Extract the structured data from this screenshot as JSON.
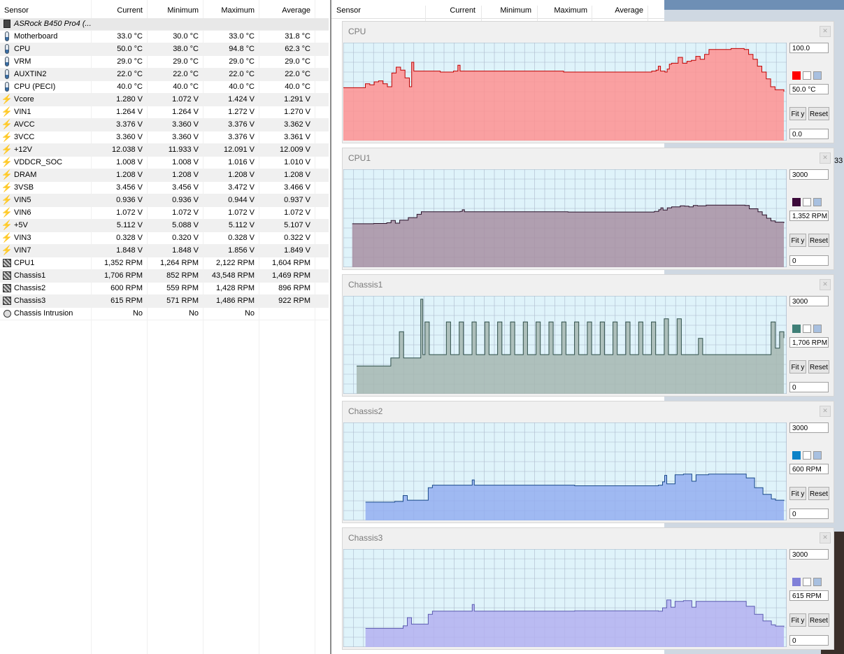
{
  "columns": {
    "sensor": "Sensor",
    "current": "Current",
    "minimum": "Minimum",
    "maximum": "Maximum",
    "average": "Average"
  },
  "rows": [
    {
      "icon": "chip-icon",
      "name": "ASRock B450 Pro4 (...",
      "cur": "",
      "min": "",
      "max": "",
      "avg": "",
      "device": true
    },
    {
      "icon": "thermometer-icon",
      "name": "Motherboard",
      "cur": "33.0 °C",
      "min": "30.0 °C",
      "max": "33.0 °C",
      "avg": "31.8 °C"
    },
    {
      "icon": "thermometer-icon",
      "name": "CPU",
      "cur": "50.0 °C",
      "min": "38.0 °C",
      "max": "94.8 °C",
      "avg": "62.3 °C"
    },
    {
      "icon": "thermometer-icon",
      "name": "VRM",
      "cur": "29.0 °C",
      "min": "29.0 °C",
      "max": "29.0 °C",
      "avg": "29.0 °C"
    },
    {
      "icon": "thermometer-icon",
      "name": "AUXTIN2",
      "cur": "22.0 °C",
      "min": "22.0 °C",
      "max": "22.0 °C",
      "avg": "22.0 °C"
    },
    {
      "icon": "thermometer-icon",
      "name": "CPU (PECI)",
      "cur": "40.0 °C",
      "min": "40.0 °C",
      "max": "40.0 °C",
      "avg": "40.0 °C"
    },
    {
      "icon": "voltage-icon",
      "name": "Vcore",
      "cur": "1.280 V",
      "min": "1.072 V",
      "max": "1.424 V",
      "avg": "1.291 V"
    },
    {
      "icon": "voltage-icon",
      "name": "VIN1",
      "cur": "1.264 V",
      "min": "1.264 V",
      "max": "1.272 V",
      "avg": "1.270 V"
    },
    {
      "icon": "voltage-icon",
      "name": "AVCC",
      "cur": "3.376 V",
      "min": "3.360 V",
      "max": "3.376 V",
      "avg": "3.362 V"
    },
    {
      "icon": "voltage-icon",
      "name": "3VCC",
      "cur": "3.360 V",
      "min": "3.360 V",
      "max": "3.376 V",
      "avg": "3.361 V"
    },
    {
      "icon": "voltage-icon",
      "name": "+12V",
      "cur": "12.038 V",
      "min": "11.933 V",
      "max": "12.091 V",
      "avg": "12.009 V"
    },
    {
      "icon": "voltage-icon",
      "name": "VDDCR_SOC",
      "cur": "1.008 V",
      "min": "1.008 V",
      "max": "1.016 V",
      "avg": "1.010 V"
    },
    {
      "icon": "voltage-icon",
      "name": "DRAM",
      "cur": "1.208 V",
      "min": "1.208 V",
      "max": "1.208 V",
      "avg": "1.208 V"
    },
    {
      "icon": "voltage-icon",
      "name": "3VSB",
      "cur": "3.456 V",
      "min": "3.456 V",
      "max": "3.472 V",
      "avg": "3.466 V"
    },
    {
      "icon": "voltage-icon",
      "name": "VIN5",
      "cur": "0.936 V",
      "min": "0.936 V",
      "max": "0.944 V",
      "avg": "0.937 V"
    },
    {
      "icon": "voltage-icon",
      "name": "VIN6",
      "cur": "1.072 V",
      "min": "1.072 V",
      "max": "1.072 V",
      "avg": "1.072 V"
    },
    {
      "icon": "voltage-icon",
      "name": "+5V",
      "cur": "5.112 V",
      "min": "5.088 V",
      "max": "5.112 V",
      "avg": "5.107 V"
    },
    {
      "icon": "voltage-icon",
      "name": "VIN3",
      "cur": "0.328 V",
      "min": "0.320 V",
      "max": "0.328 V",
      "avg": "0.322 V"
    },
    {
      "icon": "voltage-icon",
      "name": "VIN7",
      "cur": "1.848 V",
      "min": "1.848 V",
      "max": "1.856 V",
      "avg": "1.849 V"
    },
    {
      "icon": "fan-icon",
      "name": "CPU1",
      "cur": "1,352 RPM",
      "min": "1,264 RPM",
      "max": "2,122 RPM",
      "avg": "1,604 RPM"
    },
    {
      "icon": "fan-icon",
      "name": "Chassis1",
      "cur": "1,706 RPM",
      "min": "852 RPM",
      "max": "43,548 RPM",
      "avg": "1,469 RPM"
    },
    {
      "icon": "fan-icon",
      "name": "Chassis2",
      "cur": "600 RPM",
      "min": "559 RPM",
      "max": "1,428 RPM",
      "avg": "896 RPM"
    },
    {
      "icon": "fan-icon",
      "name": "Chassis3",
      "cur": "615 RPM",
      "min": "571 RPM",
      "max": "1,486 RPM",
      "avg": "922 RPM"
    },
    {
      "icon": "intrusion-icon",
      "name": "Chassis Intrusion",
      "cur": "No",
      "min": "No",
      "max": "No",
      "avg": ""
    }
  ],
  "edge_text": "33",
  "colors": {
    "grid_bg": "#dff3fa",
    "grid_line": "#aab8cc"
  },
  "graphs": [
    {
      "title": "CPU",
      "max_value": "100.0",
      "current_value": "50.0 °C",
      "min_value": "0.0",
      "fit_label": "Fit y",
      "reset_label": "Reset",
      "color": "#ff0000",
      "fill": "#ff9090",
      "stroke": "#c00000",
      "y_max": 100,
      "series": [
        [
          0,
          54
        ],
        [
          4,
          54
        ],
        [
          5,
          58
        ],
        [
          6,
          57
        ],
        [
          7,
          60
        ],
        [
          8,
          61
        ],
        [
          9,
          58
        ],
        [
          10,
          55
        ],
        [
          11,
          69
        ],
        [
          12,
          75
        ],
        [
          13,
          72
        ],
        [
          14,
          64
        ],
        [
          15,
          55
        ],
        [
          15.5,
          80
        ],
        [
          16,
          71
        ],
        [
          22,
          70
        ],
        [
          25,
          71
        ],
        [
          26,
          77
        ],
        [
          26.5,
          71
        ],
        [
          30,
          71
        ],
        [
          50,
          70
        ],
        [
          70,
          71
        ],
        [
          71,
          72
        ],
        [
          71.5,
          76
        ],
        [
          72,
          71
        ],
        [
          73,
          70
        ],
        [
          73.5,
          73
        ],
        [
          74,
          78
        ],
        [
          74.5,
          79
        ],
        [
          76,
          85
        ],
        [
          77,
          79
        ],
        [
          78,
          81
        ],
        [
          79,
          82
        ],
        [
          80,
          86
        ],
        [
          81,
          83
        ],
        [
          82,
          88
        ],
        [
          83,
          93
        ],
        [
          88,
          94
        ],
        [
          91,
          93
        ],
        [
          92,
          88
        ],
        [
          93,
          83
        ],
        [
          94,
          76
        ],
        [
          95,
          70
        ],
        [
          96,
          63
        ],
        [
          97,
          55
        ],
        [
          98,
          52
        ],
        [
          100,
          50
        ]
      ],
      "x_start": 0
    },
    {
      "title": "CPU1",
      "max_value": "3000",
      "current_value": "1,352 RPM",
      "min_value": "0",
      "fit_label": "Fit y",
      "reset_label": "Reset",
      "color": "#3c0a3a",
      "fill": "#a88fa2",
      "stroke": "#2a1028",
      "y_max": 3000,
      "series": [
        [
          0,
          1330
        ],
        [
          3,
          1330
        ],
        [
          5,
          1340
        ],
        [
          8,
          1360
        ],
        [
          9,
          1430
        ],
        [
          10,
          1350
        ],
        [
          11,
          1440
        ],
        [
          13,
          1520
        ],
        [
          15,
          1620
        ],
        [
          16,
          1700
        ],
        [
          25,
          1710
        ],
        [
          25.5,
          1760
        ],
        [
          26,
          1700
        ],
        [
          50,
          1690
        ],
        [
          70,
          1710
        ],
        [
          71,
          1760
        ],
        [
          71.5,
          1820
        ],
        [
          72,
          1750
        ],
        [
          73,
          1820
        ],
        [
          74,
          1850
        ],
        [
          76,
          1880
        ],
        [
          77,
          1870
        ],
        [
          78,
          1850
        ],
        [
          79,
          1890
        ],
        [
          80,
          1880
        ],
        [
          82,
          1900
        ],
        [
          88,
          1900
        ],
        [
          91,
          1890
        ],
        [
          92,
          1790
        ],
        [
          94,
          1700
        ],
        [
          95,
          1600
        ],
        [
          96,
          1500
        ],
        [
          97,
          1420
        ],
        [
          98,
          1380
        ],
        [
          100,
          1352
        ]
      ],
      "x_start": 2
    },
    {
      "title": "Chassis1",
      "max_value": "3000",
      "current_value": "1,706 RPM",
      "min_value": "0",
      "fit_label": "Fit y",
      "reset_label": "Reset",
      "color": "#3f7f77",
      "fill": "#a6b6b0",
      "stroke": "#2f4f4a",
      "y_max": 3000,
      "series": [
        [
          0,
          850
        ],
        [
          7,
          850
        ],
        [
          8,
          1100
        ],
        [
          9,
          1100
        ],
        [
          10,
          1900
        ],
        [
          11,
          1100
        ],
        [
          14,
          1100
        ],
        [
          15,
          2900
        ],
        [
          15.5,
          1200
        ],
        [
          16,
          2200
        ],
        [
          17,
          1200
        ],
        [
          20,
          1200
        ],
        [
          21,
          2200
        ],
        [
          22,
          1200
        ],
        [
          24,
          2200
        ],
        [
          25,
          1200
        ],
        [
          27,
          2200
        ],
        [
          28,
          1200
        ],
        [
          30,
          2200
        ],
        [
          31,
          1200
        ],
        [
          33,
          2200
        ],
        [
          34,
          1200
        ],
        [
          36,
          2200
        ],
        [
          37,
          1200
        ],
        [
          39,
          2200
        ],
        [
          40,
          1200
        ],
        [
          42,
          2200
        ],
        [
          43,
          1200
        ],
        [
          45,
          2200
        ],
        [
          46,
          1200
        ],
        [
          48,
          2200
        ],
        [
          49,
          1200
        ],
        [
          51,
          2200
        ],
        [
          52,
          1200
        ],
        [
          54,
          2200
        ],
        [
          55,
          1200
        ],
        [
          57,
          2200
        ],
        [
          58,
          1200
        ],
        [
          60,
          2200
        ],
        [
          61,
          1200
        ],
        [
          63,
          2200
        ],
        [
          64,
          1200
        ],
        [
          66,
          2200
        ],
        [
          67,
          1200
        ],
        [
          69,
          2200
        ],
        [
          70,
          1200
        ],
        [
          72,
          2300
        ],
        [
          73,
          1200
        ],
        [
          75,
          2300
        ],
        [
          76,
          1200
        ],
        [
          79,
          1200
        ],
        [
          80,
          1700
        ],
        [
          81,
          1200
        ],
        [
          88,
          1200
        ],
        [
          90,
          1200
        ],
        [
          91,
          1200
        ],
        [
          92,
          1200
        ],
        [
          97,
          2200
        ],
        [
          98,
          1400
        ],
        [
          99,
          1900
        ],
        [
          100,
          1706
        ]
      ],
      "x_start": 3
    },
    {
      "title": "Chassis2",
      "max_value": "3000",
      "current_value": "600 RPM",
      "min_value": "0",
      "fit_label": "Fit y",
      "reset_label": "Reset",
      "color": "#0a82c8",
      "fill": "#94aef0",
      "stroke": "#1a4a8a",
      "y_max": 3000,
      "series": [
        [
          0,
          560
        ],
        [
          5,
          560
        ],
        [
          7,
          580
        ],
        [
          9,
          760
        ],
        [
          10,
          620
        ],
        [
          13,
          620
        ],
        [
          15,
          1000
        ],
        [
          16,
          1080
        ],
        [
          25,
          1080
        ],
        [
          25.5,
          1240
        ],
        [
          26,
          1080
        ],
        [
          50,
          1060
        ],
        [
          70,
          1080
        ],
        [
          71,
          1180
        ],
        [
          71.5,
          1380
        ],
        [
          72,
          1120
        ],
        [
          74,
          1400
        ],
        [
          76,
          1420
        ],
        [
          78,
          1200
        ],
        [
          79,
          1400
        ],
        [
          80,
          1400
        ],
        [
          82,
          1420
        ],
        [
          90,
          1420
        ],
        [
          91,
          1300
        ],
        [
          93,
          1000
        ],
        [
          95,
          800
        ],
        [
          97,
          660
        ],
        [
          98,
          620
        ],
        [
          100,
          600
        ]
      ],
      "x_start": 5
    },
    {
      "title": "Chassis3",
      "max_value": "3000",
      "current_value": "615 RPM",
      "min_value": "0",
      "fit_label": "Fit y",
      "reset_label": "Reset",
      "color": "#8080d8",
      "fill": "#b4b0f0",
      "stroke": "#5a5ab0",
      "y_max": 3000,
      "series": [
        [
          0,
          570
        ],
        [
          7,
          570
        ],
        [
          9,
          650
        ],
        [
          10,
          900
        ],
        [
          11,
          700
        ],
        [
          13,
          700
        ],
        [
          15,
          1000
        ],
        [
          16,
          1100
        ],
        [
          25,
          1100
        ],
        [
          25.5,
          1300
        ],
        [
          26,
          1100
        ],
        [
          50,
          1110
        ],
        [
          70,
          1100
        ],
        [
          71,
          1200
        ],
        [
          72,
          1440
        ],
        [
          73,
          1220
        ],
        [
          74,
          1400
        ],
        [
          76,
          1420
        ],
        [
          78,
          1220
        ],
        [
          79,
          1400
        ],
        [
          80,
          1400
        ],
        [
          83,
          1400
        ],
        [
          90,
          1400
        ],
        [
          91,
          1250
        ],
        [
          93,
          1000
        ],
        [
          95,
          800
        ],
        [
          97,
          680
        ],
        [
          98,
          640
        ],
        [
          100,
          615
        ]
      ],
      "x_start": 5
    }
  ]
}
